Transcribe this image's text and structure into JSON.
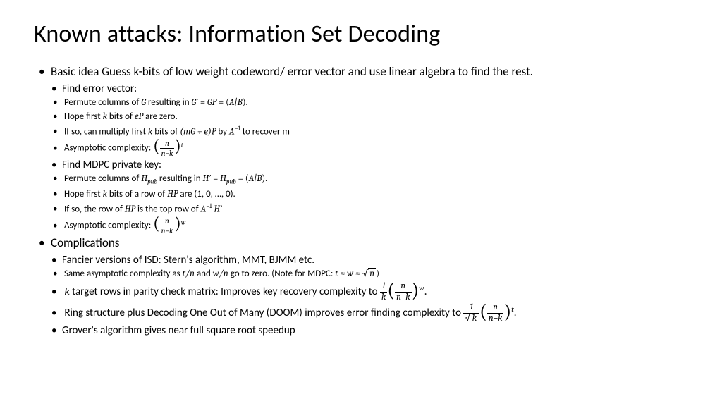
{
  "title": "Known attacks: Information Set Decoding",
  "l1": {
    "basic": "Basic idea Guess k-bits of low weight codeword/ error vector and use linear algebra to find the rest.",
    "complications": "Complications"
  },
  "l2": {
    "find_error": "Find error vector:",
    "find_mdpc": "Find MDPC private key:",
    "fancier": "Fancier versions of ISD: Stern's algorithm, MMT, BJMM etc.",
    "ktarget_pre": " target rows in parity check matrix: Improves  key recovery complexity to ",
    "ring_pre": "Ring structure plus Decoding One Out of Many (DOOM) improves error finding complexity to ",
    "grover": "Grover's algorithm gives near full square root speedup"
  },
  "l3": {
    "e1": "Permute columns of ",
    "e1b": " resulting in ",
    "e2": "Hope first ",
    "e2b": " bits of ",
    "e2c": " are zero.",
    "e3": "If so, can multiply first ",
    "e3b": " bits of ",
    "e3c": " by ",
    "e3d": " to recover m",
    "e4": "Asymptotic complexity: ",
    "m1b": " resulting in ",
    "m2b": " bits of a row of ",
    "m2c": " are (1, 0, …, 0).",
    "m3": "If so, the row of ",
    "m3b": " is the top row of ",
    "same": "Same asymptotic complexity as ",
    "same2": " and ",
    "same3": " go to zero. (Note for MDPC: "
  },
  "sym": {
    "G": "G",
    "Gp": "G′",
    "GP": "GP",
    "AB": "A|B",
    "k": "k",
    "eP": "eP",
    "mGeP": "(mG  +  e)P",
    "Ainv": "A",
    "n": "n",
    "nmk": "n−k",
    "t": "t",
    "w": "w",
    "Hpub": "H",
    "pub": "pub",
    "Hp": "H′",
    "HP": "HP",
    "tn": "t/n",
    "wn": "w/n",
    "tw": "t ≈ w ≈ ",
    "sqrtn": "n",
    "onek": "1",
    "sqrtk": "k",
    "period": "."
  },
  "style": {
    "bg": "#ffffff",
    "text": "#000000",
    "title_fontsize": 34,
    "l1_fontsize": 17,
    "l2_fontsize": 15,
    "l3_fontsize": 13,
    "font_family": "Calibri",
    "math_font": "Cambria Math"
  }
}
